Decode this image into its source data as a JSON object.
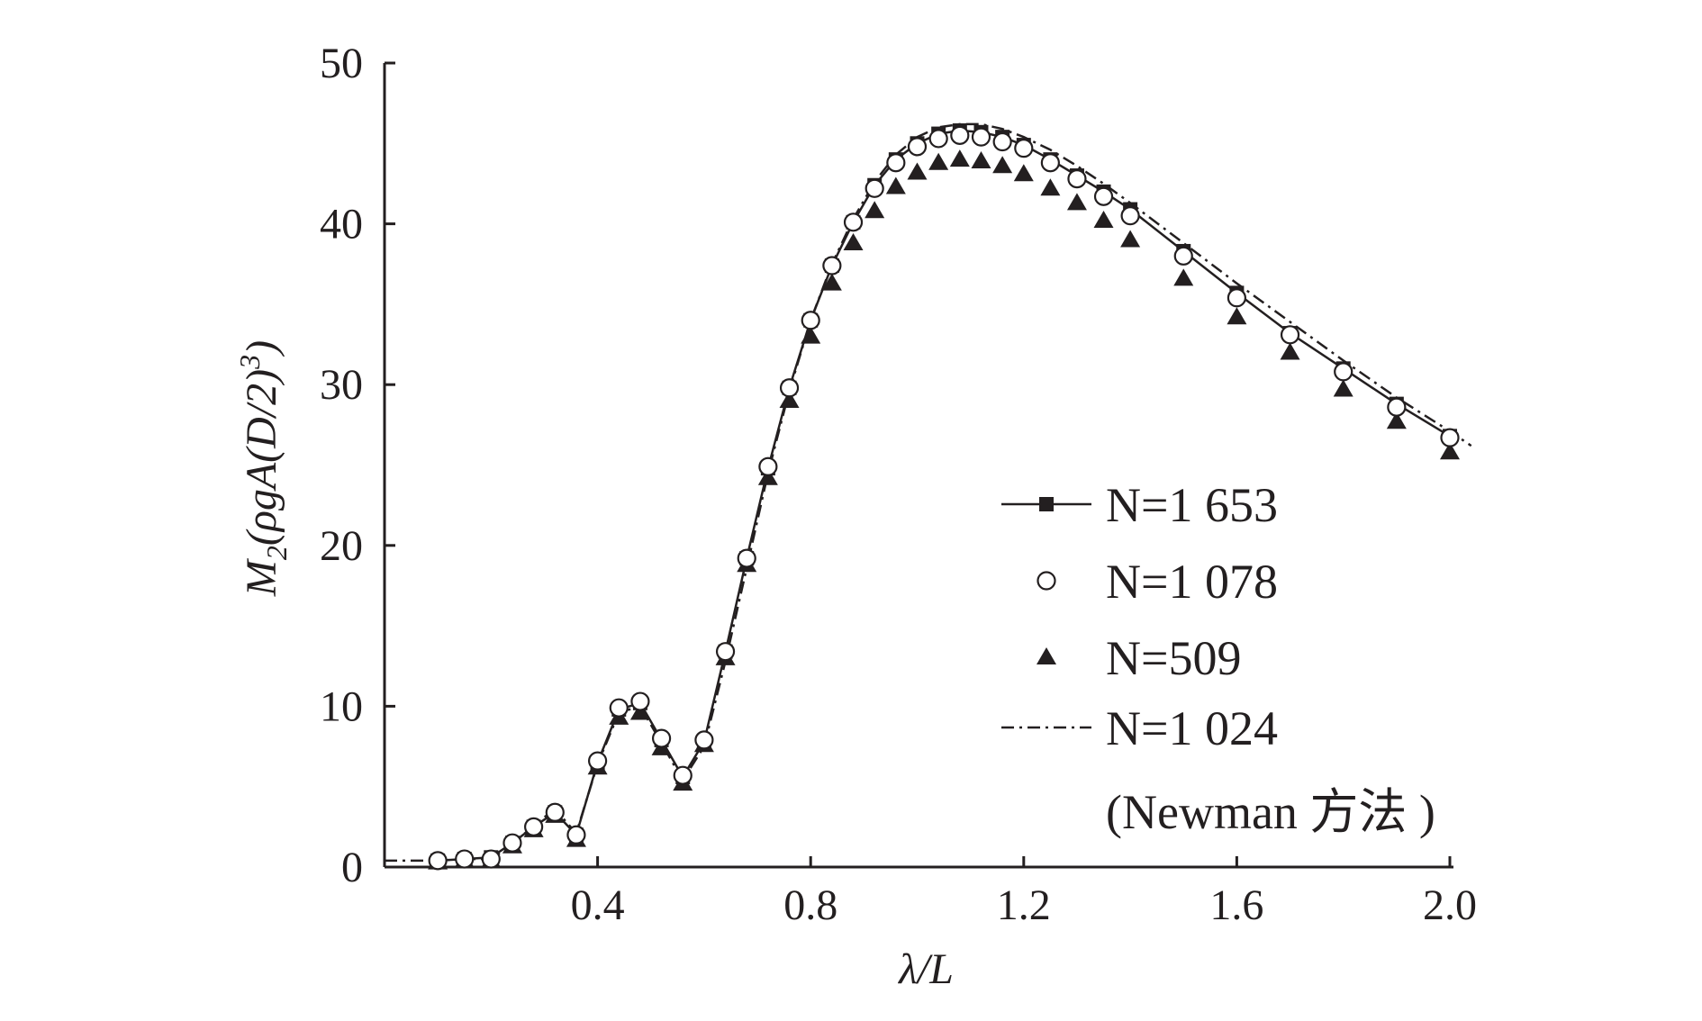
{
  "chart_data": {
    "type": "line",
    "xlabel": "λ/L",
    "ylabel_parts": {
      "main": "M",
      "sub": "2",
      "rest": "(ρgA(D/2)",
      "sup": "3",
      "close": ")"
    },
    "xlim": [
      0.0,
      2.0
    ],
    "ylim": [
      0,
      50
    ],
    "x_ticks": [
      "0.4",
      "0.8",
      "1.2",
      "1.6",
      "2.0"
    ],
    "y_ticks": [
      "0",
      "10",
      "20",
      "30",
      "40",
      "50"
    ],
    "grid": false,
    "legend_placement": "lower-right",
    "colors": {
      "ink": "#231f20"
    },
    "series": [
      {
        "name": "N=1 653",
        "style": "solid-line-square-markers",
        "x": [
          0.1,
          0.15,
          0.2,
          0.24,
          0.28,
          0.32,
          0.36,
          0.4,
          0.44,
          0.48,
          0.52,
          0.56,
          0.6,
          0.64,
          0.68,
          0.72,
          0.76,
          0.8,
          0.84,
          0.88,
          0.92,
          0.96,
          1.0,
          1.04,
          1.08,
          1.12,
          1.16,
          1.2,
          1.25,
          1.3,
          1.35,
          1.4,
          1.5,
          1.6,
          1.7,
          1.8,
          1.9,
          2.0
        ],
        "y": [
          0.4,
          0.5,
          0.6,
          1.5,
          2.5,
          3.4,
          2.0,
          6.5,
          9.8,
          10.2,
          7.9,
          5.6,
          7.8,
          13.4,
          19.2,
          24.8,
          29.8,
          34.0,
          37.4,
          40.1,
          42.4,
          44.0,
          45.0,
          45.6,
          45.8,
          45.7,
          45.4,
          44.9,
          44.0,
          43.0,
          42.0,
          40.9,
          38.3,
          35.7,
          33.2,
          31.0,
          28.8,
          26.8
        ]
      },
      {
        "name": "N=1 078",
        "style": "open-circle-markers",
        "x": [
          0.1,
          0.15,
          0.2,
          0.24,
          0.28,
          0.32,
          0.36,
          0.4,
          0.44,
          0.48,
          0.52,
          0.56,
          0.6,
          0.64,
          0.68,
          0.72,
          0.76,
          0.8,
          0.84,
          0.88,
          0.92,
          0.96,
          1.0,
          1.04,
          1.08,
          1.12,
          1.16,
          1.2,
          1.25,
          1.3,
          1.35,
          1.4,
          1.5,
          1.6,
          1.7,
          1.8,
          1.9,
          2.0
        ],
        "y": [
          0.4,
          0.5,
          0.5,
          1.5,
          2.5,
          3.4,
          2.0,
          6.6,
          9.9,
          10.3,
          8.0,
          5.7,
          7.9,
          13.4,
          19.2,
          24.9,
          29.8,
          34.0,
          37.4,
          40.1,
          42.2,
          43.8,
          44.8,
          45.3,
          45.5,
          45.4,
          45.1,
          44.7,
          43.8,
          42.8,
          41.7,
          40.5,
          38.0,
          35.4,
          33.1,
          30.8,
          28.6,
          26.7
        ]
      },
      {
        "name": "N=509",
        "style": "filled-triangle-markers",
        "x": [
          0.1,
          0.15,
          0.2,
          0.24,
          0.28,
          0.32,
          0.36,
          0.4,
          0.44,
          0.48,
          0.52,
          0.56,
          0.6,
          0.64,
          0.68,
          0.72,
          0.76,
          0.8,
          0.84,
          0.88,
          0.92,
          0.96,
          1.0,
          1.04,
          1.08,
          1.12,
          1.16,
          1.2,
          1.25,
          1.3,
          1.35,
          1.4,
          1.5,
          1.6,
          1.7,
          1.8,
          1.9,
          2.0
        ],
        "y": [
          0.3,
          0.4,
          0.4,
          1.3,
          2.3,
          3.2,
          1.7,
          6.2,
          9.3,
          9.6,
          7.4,
          5.2,
          7.6,
          13.0,
          18.8,
          24.2,
          29.0,
          33.0,
          36.3,
          38.8,
          40.8,
          42.3,
          43.2,
          43.8,
          44.0,
          43.9,
          43.6,
          43.1,
          42.2,
          41.3,
          40.2,
          39.0,
          36.6,
          34.2,
          32.0,
          29.7,
          27.7,
          25.8
        ]
      },
      {
        "name": "N=1 024",
        "note": "(Newman 方法 )",
        "style": "dash-dot-line",
        "x": [
          0.0,
          0.1,
          0.15,
          0.2,
          0.24,
          0.28,
          0.32,
          0.36,
          0.4,
          0.44,
          0.48,
          0.52,
          0.56,
          0.6,
          0.64,
          0.68,
          0.72,
          0.76,
          0.8,
          0.84,
          0.88,
          0.92,
          0.96,
          1.0,
          1.04,
          1.08,
          1.12,
          1.16,
          1.2,
          1.25,
          1.3,
          1.35,
          1.4,
          1.5,
          1.6,
          1.7,
          1.8,
          1.9,
          2.0,
          2.04
        ],
        "y": [
          0.4,
          0.4,
          0.5,
          0.5,
          1.4,
          2.6,
          3.6,
          2.1,
          6.4,
          9.6,
          10.0,
          7.7,
          5.4,
          7.5,
          12.8,
          18.6,
          24.5,
          29.6,
          34.0,
          37.5,
          40.3,
          42.6,
          44.3,
          45.4,
          46.0,
          46.2,
          46.2,
          45.9,
          45.4,
          44.6,
          43.6,
          42.5,
          41.3,
          38.8,
          36.3,
          33.9,
          31.5,
          29.2,
          27.1,
          26.2
        ]
      }
    ]
  }
}
